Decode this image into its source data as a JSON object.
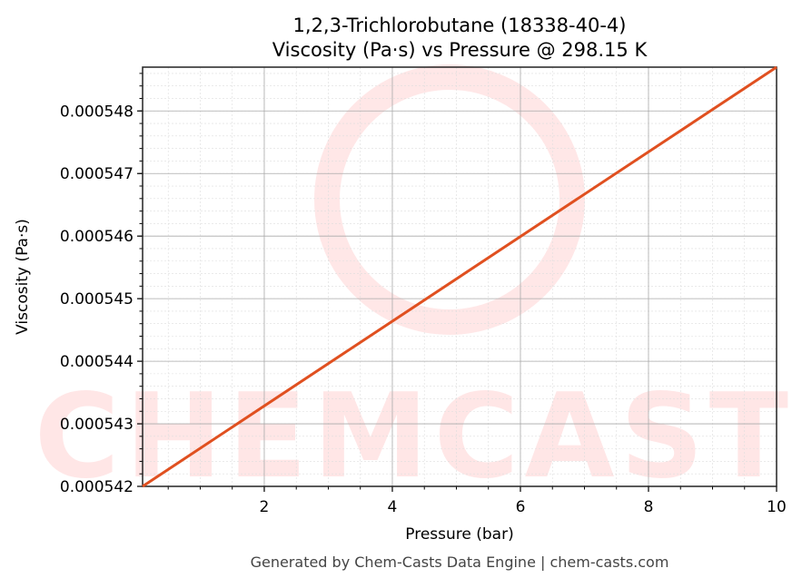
{
  "chart_data": {
    "type": "line",
    "title": "1,2,3-Trichlorobutane (18338-40-4)",
    "subtitle": "Viscosity (Pa·s) vs Pressure @ 298.15 K",
    "xlabel": "Pressure (bar)",
    "ylabel": "Viscosity (Pa·s)",
    "xlim": [
      0.1,
      10
    ],
    "ylim": [
      0.000542,
      0.0005487
    ],
    "xticks": [
      2,
      4,
      6,
      8,
      10
    ],
    "yticks": [
      0.000542,
      0.000543,
      0.000544,
      0.000545,
      0.000546,
      0.000547,
      0.000548
    ],
    "ytick_labels": [
      "0.000542",
      "0.000543",
      "0.000544",
      "0.000545",
      "0.000546",
      "0.000547",
      "0.000548"
    ],
    "grid": true,
    "series": [
      {
        "x": [
          0.1,
          10
        ],
        "y": [
          0.000542,
          0.0005487
        ],
        "color": "#e05020"
      }
    ],
    "watermark": "CHEMCASTS",
    "footer": "Generated by Chem-Casts Data Engine | chem-casts.com"
  }
}
